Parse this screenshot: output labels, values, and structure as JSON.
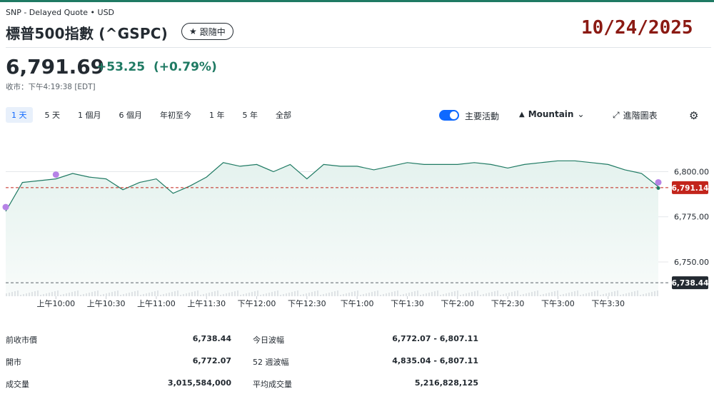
{
  "header": {
    "source": "SNP - Delayed Quote • USD",
    "title": "標普500指數 (^GSPC)",
    "follow_label": "跟隨中",
    "date_overlay": "10/24/2025"
  },
  "quote": {
    "price": "6,791.69",
    "change": "+53.25",
    "change_pct": "(+0.79%)",
    "status": "收市：下午4:19:38 [EDT]"
  },
  "toolbar": {
    "ranges": [
      "1 天",
      "5 天",
      "1 個月",
      "6 個月",
      "年初至今",
      "1 年",
      "5 年",
      "全部"
    ],
    "active_range": "1 天",
    "events_label": "主要活動",
    "events_enabled": true,
    "chart_style_label": "Mountain",
    "advanced_label": "進階圖表"
  },
  "chart_data": {
    "type": "area",
    "x": [
      "9:30",
      "9:40",
      "9:50",
      "10:00",
      "10:10",
      "10:20",
      "10:30",
      "10:40",
      "10:50",
      "11:00",
      "11:10",
      "11:20",
      "11:30",
      "11:40",
      "11:50",
      "12:00",
      "12:10",
      "12:20",
      "12:30",
      "12:40",
      "12:50",
      "13:00",
      "13:10",
      "13:20",
      "13:30",
      "13:40",
      "13:50",
      "14:00",
      "14:10",
      "14:20",
      "14:30",
      "14:40",
      "14:50",
      "15:00",
      "15:10",
      "15:20",
      "15:30",
      "15:40",
      "15:50",
      "16:00"
    ],
    "values": [
      6778,
      6794,
      6795,
      6796,
      6799,
      6797,
      6796,
      6790,
      6794,
      6796,
      6788,
      6792,
      6797,
      6805,
      6803,
      6804,
      6800,
      6804,
      6796,
      6804,
      6803,
      6803,
      6801,
      6803,
      6805,
      6804,
      6804,
      6804,
      6805,
      6804,
      6802,
      6804,
      6805,
      6806,
      6806,
      6805,
      6804,
      6801,
      6799,
      6791.69
    ],
    "x_ticks": [
      "上午10:00",
      "上午10:30",
      "上午11:00",
      "上午11:30",
      "下午12:00",
      "下午12:30",
      "下午1:00",
      "下午1:30",
      "下午2:00",
      "下午2:30",
      "下午3:00",
      "下午3:30"
    ],
    "y_ticks": [
      "6,800.00",
      "6,775.00",
      "6,750.00"
    ],
    "y_tick_values": [
      6800,
      6775,
      6750
    ],
    "ylim": [
      6731,
      6816
    ],
    "current_price_label": "6,791.14",
    "current_price_value": 6791.14,
    "prev_close_label": "6,738.44",
    "prev_close_value": 6738.44,
    "line_color": "#1f7a63",
    "fill_color": "#e4f2ee",
    "event_color": "#b683e6",
    "current_badge_color": "#c2241b",
    "prev_badge_color": "#232a31",
    "events_at": [
      "9:30",
      "10:00",
      "16:00"
    ]
  },
  "stats": [
    {
      "label": "前收市價",
      "value": "6,738.44"
    },
    {
      "label": "今日波幅",
      "value": "6,772.07 - 6,807.11"
    },
    {
      "label": "開市",
      "value": "6,772.07"
    },
    {
      "label": "52 週波幅",
      "value": "4,835.04 - 6,807.11"
    },
    {
      "label": "成交量",
      "value": "3,015,584,000"
    },
    {
      "label": "平均成交量",
      "value": "5,216,828,125"
    }
  ]
}
